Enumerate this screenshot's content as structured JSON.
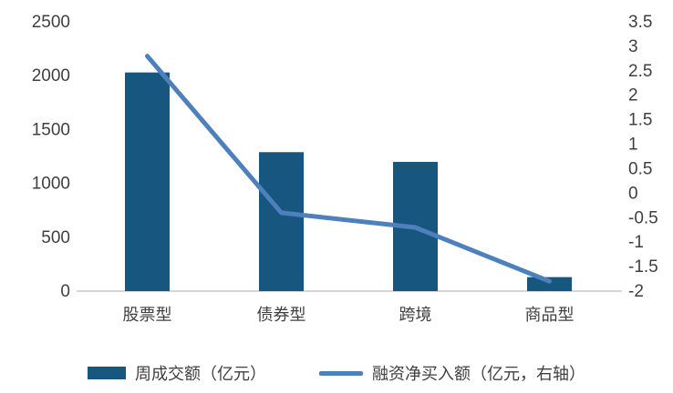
{
  "chart_data": {
    "type": "combo",
    "categories": [
      "股票型",
      "债券型",
      "跨境",
      "商品型"
    ],
    "series": [
      {
        "name": "周成交额（亿元）",
        "type": "bar",
        "axis": "left",
        "values": [
          2030,
          1290,
          1200,
          130
        ],
        "color": "#16567F"
      },
      {
        "name": "融资净买入额（亿元，右轴）",
        "type": "line",
        "axis": "right",
        "values": [
          2.8,
          -0.4,
          -0.7,
          -1.8
        ],
        "color": "#4E80BC"
      }
    ],
    "left_axis": {
      "min": 0,
      "max": 2500,
      "step": 500
    },
    "right_axis": {
      "min": -2,
      "max": 3.5,
      "step": 0.5
    },
    "grid": false,
    "legend_position": "bottom",
    "axis_line_color": "#C8C8C8",
    "text_color": "#3F3F3F"
  }
}
